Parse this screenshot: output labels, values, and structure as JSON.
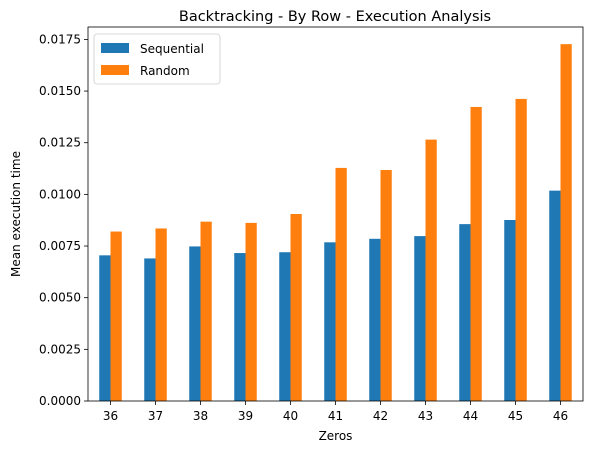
{
  "chart_data": {
    "type": "bar",
    "title": "Backtracking - By Row - Execution Analysis",
    "xlabel": "Zeros",
    "ylabel": "Mean execution time",
    "categories": [
      "36",
      "37",
      "38",
      "39",
      "40",
      "41",
      "42",
      "43",
      "44",
      "45",
      "46"
    ],
    "series": [
      {
        "name": "Sequential",
        "color": "#1f77b4",
        "values": [
          0.00705,
          0.0069,
          0.00748,
          0.00716,
          0.0072,
          0.00768,
          0.00785,
          0.00798,
          0.00856,
          0.00876,
          0.01018
        ]
      },
      {
        "name": "Random",
        "color": "#ff7f0e",
        "values": [
          0.0082,
          0.00835,
          0.00868,
          0.00862,
          0.00905,
          0.01128,
          0.01118,
          0.01265,
          0.01423,
          0.01462,
          0.01727
        ]
      }
    ],
    "ylim": [
      0,
      0.0181
    ],
    "yticks": [
      "0.0000",
      "0.0025",
      "0.0050",
      "0.0075",
      "0.0100",
      "0.0125",
      "0.0150",
      "0.0175"
    ],
    "ytick_values": [
      0,
      0.0025,
      0.005,
      0.0075,
      0.01,
      0.0125,
      0.015,
      0.0175
    ],
    "grid": false,
    "legend_position": "top-left"
  }
}
